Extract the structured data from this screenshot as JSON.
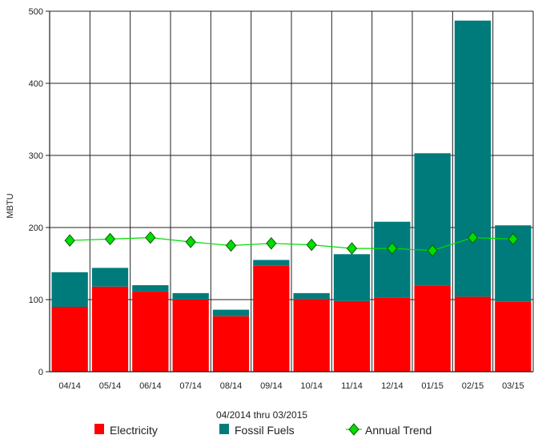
{
  "chart_data": {
    "type": "bar",
    "stacked": true,
    "categories": [
      "04/14",
      "05/14",
      "06/14",
      "07/14",
      "08/14",
      "09/14",
      "10/14",
      "11/14",
      "12/14",
      "01/15",
      "02/15",
      "03/15"
    ],
    "series": [
      {
        "name": "Electricity",
        "color": "#ff0000",
        "values": [
          90,
          118,
          111,
          100,
          77,
          147,
          101,
          98,
          103,
          119,
          104,
          97
        ]
      },
      {
        "name": "Fossil Fuels",
        "color": "#007b7b",
        "values": [
          48,
          26,
          9,
          9,
          9,
          8,
          8,
          65,
          105,
          184,
          383,
          106
        ]
      }
    ],
    "trend": {
      "name": "Annual Trend",
      "color": "#00dd00",
      "values": [
        182,
        184,
        186,
        180,
        175,
        178,
        176,
        171,
        171,
        168,
        186,
        184
      ]
    },
    "xlabel": "04/2014 thru 03/2015",
    "ylabel": "MBTU",
    "ylim": [
      0,
      500
    ],
    "yticks": [
      0,
      100,
      200,
      300,
      400,
      500
    ],
    "grid": true,
    "legend": "bottom"
  }
}
